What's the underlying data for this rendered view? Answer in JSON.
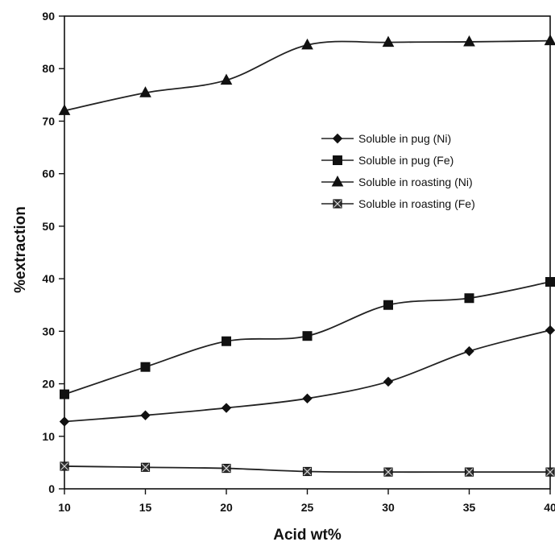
{
  "chart_data": {
    "type": "line",
    "title": "",
    "xlabel": "Acid wt%",
    "ylabel": "%extraction",
    "x": [
      10,
      15,
      20,
      25,
      30,
      35,
      40
    ],
    "xlim": [
      10,
      40
    ],
    "ylim": [
      0,
      90
    ],
    "xticks": [
      "10",
      "15",
      "20",
      "25",
      "30",
      "35",
      "40"
    ],
    "yticks": [
      "0",
      "10",
      "20",
      "30",
      "40",
      "50",
      "60",
      "70",
      "80",
      "90"
    ],
    "grid": false,
    "legend_position": "right-upper-middle",
    "series": [
      {
        "name": "Soluble in pug (Ni)",
        "marker": "diamond",
        "color": "#222222",
        "values": [
          12.8,
          14.0,
          15.4,
          17.2,
          20.4,
          26.2,
          30.2
        ]
      },
      {
        "name": "Soluble in pug (Fe)",
        "marker": "square",
        "color": "#222222",
        "values": [
          18.0,
          23.2,
          28.1,
          29.1,
          35.0,
          36.3,
          39.4
        ]
      },
      {
        "name": "Soluble in roasting (Ni)",
        "marker": "triangle",
        "color": "#222222",
        "values": [
          72.0,
          75.4,
          77.8,
          84.5,
          85.0,
          85.1,
          85.3
        ]
      },
      {
        "name": "Soluble in roasting (Fe)",
        "marker": "x-square",
        "color": "#222222",
        "values": [
          4.3,
          4.1,
          3.9,
          3.3,
          3.2,
          3.2,
          3.2
        ]
      }
    ]
  }
}
